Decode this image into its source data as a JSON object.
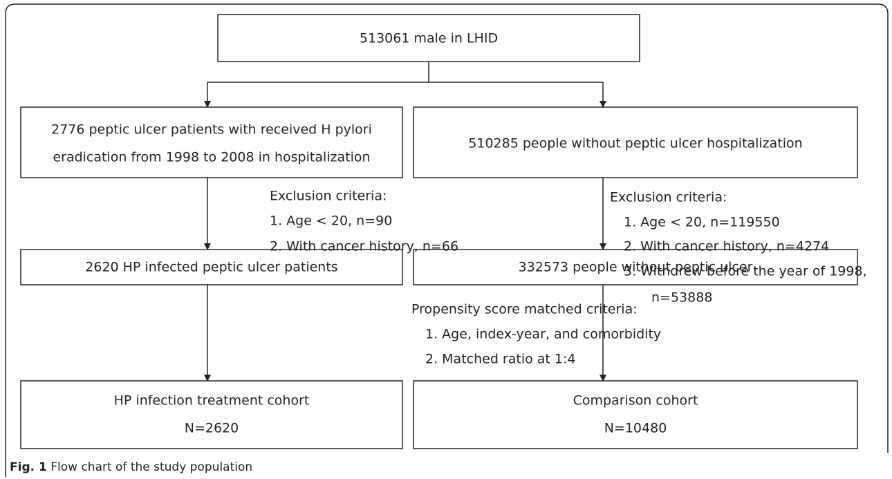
{
  "nodes": [
    {
      "lines": [
        "513061 male in LHID"
      ]
    },
    {
      "lines": [
        "2776 peptic ulcer patients with received H pylori",
        "eradication from 1998 to 2008 in hospitalization"
      ]
    },
    {
      "lines": [
        "510285 people without peptic ulcer hospitalization"
      ]
    },
    {
      "lines": [
        "2620 HP infected peptic ulcer patients"
      ]
    },
    {
      "lines": [
        "332573 people without peptic ulcer"
      ]
    },
    {
      "lines": [
        "HP infection treatment cohort",
        "N=2620"
      ]
    },
    {
      "lines": [
        "Comparison cohort",
        "N=10480"
      ]
    }
  ],
  "criteria": [
    {
      "title": "Exclusion criteria:",
      "items": [
        "1.  Age < 20, n=90",
        "2.  With cancer history, n=66"
      ]
    },
    {
      "title": "Exclusion criteria:",
      "items": [
        "1.  Age < 20, n=119550",
        "2.  With cancer history, n=4274",
        "3.  Withdrew before the year of 1998,"
      ],
      "continuation": "n=53888"
    },
    {
      "title": "Propensity score matched criteria:",
      "items": [
        "1.  Age, index-year, and comorbidity",
        "2.  Matched ratio at 1:4"
      ]
    }
  ],
  "caption": {
    "label": "Fig. 1",
    "text": "Flow chart of the study population"
  }
}
